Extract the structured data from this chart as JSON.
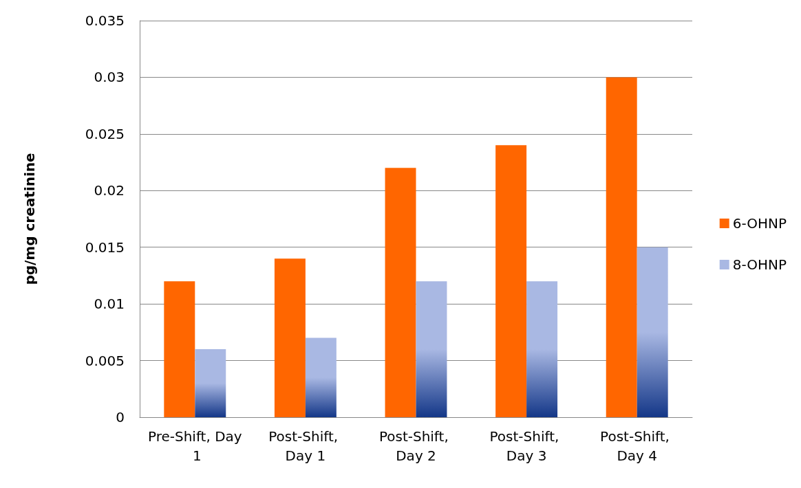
{
  "chart_data": {
    "type": "bar",
    "ylabel": "pg/mg creatinine",
    "categories": [
      "Pre-Shift, Day 1",
      "Post-Shift, Day 1",
      "Post-Shift, Day 2",
      "Post-Shift, Day 3",
      "Post-Shift, Day 4"
    ],
    "series": [
      {
        "name": "6-OHNP",
        "color": "#ff6600",
        "values": [
          0.012,
          0.014,
          0.022,
          0.024,
          0.03
        ]
      },
      {
        "name": "8-OHNP",
        "color": "#a9b8e3",
        "values": [
          0.006,
          0.007,
          0.012,
          0.012,
          0.015
        ]
      }
    ],
    "ylim": [
      0,
      0.035
    ],
    "yticks": [
      0,
      0.005,
      0.01,
      0.015,
      0.02,
      0.025,
      0.03,
      0.035
    ],
    "grid": "y",
    "legend": "right"
  }
}
